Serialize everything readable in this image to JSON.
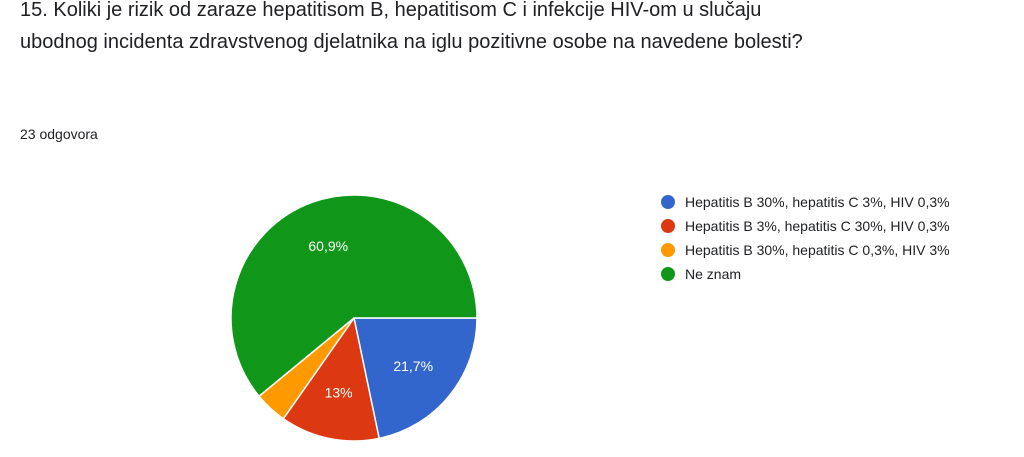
{
  "question": {
    "title": "15. Koliki je rizik od zaraze hepatitisom B, hepatitisom C i infekcije HIV-om u slučaju ubodnog incidenta zdravstvenog djelatnika na iglu pozitivne osobe na navedene bolesti?",
    "response_count": "23 odgovora"
  },
  "chart_data": {
    "type": "pie",
    "title": "",
    "legend_position": "right",
    "slices": [
      {
        "label": "Hepatitis B 30%, hepatitis C 3%, HIV 0,3%",
        "value": 21.7,
        "display": "21,7%",
        "color": "#3366cc"
      },
      {
        "label": "Hepatitis B 3%, hepatitis C 30%, HIV 0,3%",
        "value": 13.0,
        "display": "13%",
        "color": "#dc3912"
      },
      {
        "label": "Hepatitis B 30%, hepatitis C 0,3%, HIV 3%",
        "value": 4.3,
        "display": "",
        "color": "#ff9900"
      },
      {
        "label": "Ne znam",
        "value": 60.9,
        "display": "60,9%",
        "color": "#109618"
      }
    ]
  }
}
